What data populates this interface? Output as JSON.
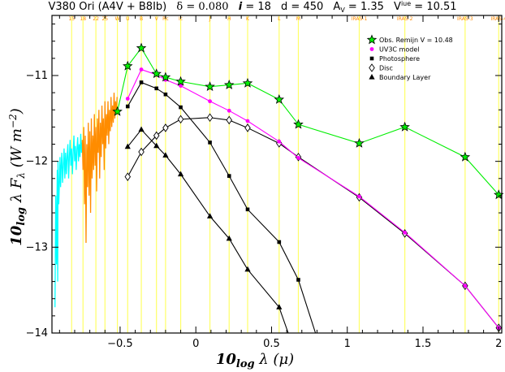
{
  "chart_data": {
    "type": "line",
    "title": "V380 Ori (A4V + B8Ib) δ = 0.080 i = 18 d = 450 A_V = 1.35 V^iue = 10.51",
    "title_parts": {
      "star": "V380 Ori (A4V + B8Ib)",
      "delta": "δ = 0.080",
      "i_symbol": "i",
      "i_value": " = 18",
      "d": "d = 450",
      "av_base": "A",
      "av_sub": "V",
      "av_value": " = 1.35",
      "viue_base": "V",
      "viue_sup": "iue",
      "viue_value": " = 10.51"
    },
    "xlabel": "10log λ (μ)",
    "ylabel": "10log λ Fλ (W m⁻²)",
    "xlabel_parts": {
      "pre": "10",
      "sub": "log",
      "post": " λ (μ)"
    },
    "ylabel_parts": {
      "pre": "10",
      "sub": "log",
      "mid": " λ F",
      "lsub": "λ",
      "post": " (W m",
      "sup": "−2",
      "end": ")"
    },
    "xlim": [
      -0.95,
      2.02
    ],
    "ylim": [
      -14,
      -10.3
    ],
    "x_ticks": [
      -0.5,
      0,
      0.5,
      1,
      1.5,
      2
    ],
    "x_tick_labels": [
      "−0.5",
      "0",
      "0.5",
      "1",
      "1.5",
      "2"
    ],
    "y_ticks": [
      -11,
      -12,
      -13,
      -14
    ],
    "y_tick_labels": [
      "−11",
      "−12",
      "−13",
      "−14"
    ],
    "filter_bands": [
      {
        "label": "15",
        "x": -0.82
      },
      {
        "label": "18",
        "x": -0.745
      },
      {
        "label": "22",
        "x": -0.66
      },
      {
        "label": "25",
        "x": -0.6
      },
      {
        "label": "W",
        "x": -0.518
      },
      {
        "label": "U",
        "x": -0.45
      },
      {
        "label": "B",
        "x": -0.36
      },
      {
        "label": "V",
        "x": -0.26
      },
      {
        "label": "Rc",
        "x": -0.2
      },
      {
        "label": "Ic",
        "x": -0.1
      },
      {
        "label": "J",
        "x": 0.093
      },
      {
        "label": "H",
        "x": 0.22
      },
      {
        "label": "K",
        "x": 0.342
      },
      {
        "label": "L",
        "x": 0.55
      },
      {
        "label": "M",
        "x": 0.677
      },
      {
        "label": "IRAS-1",
        "x": 1.079
      },
      {
        "label": "IRAS-2",
        "x": 1.38
      },
      {
        "label": "IRAS-3",
        "x": 1.778
      },
      {
        "label": "IRAS-4",
        "x": 2.0
      }
    ],
    "legend": [
      {
        "label": "Obs. Remijn V = 10.48",
        "marker": "star",
        "color": "#00ee00"
      },
      {
        "label": "UV3C model",
        "marker": "dot",
        "color": "#ff00ff"
      },
      {
        "label": "Photosphere",
        "marker": "square",
        "color": "#000000"
      },
      {
        "label": "Disc",
        "marker": "diamond",
        "color": "#000000"
      },
      {
        "label": "Boundary Layer",
        "marker": "triangle",
        "color": "#000000"
      }
    ],
    "legend_position": "top-right",
    "series": [
      {
        "name": "Obs. Remijn V = 10.48",
        "color": "#00ee00",
        "marker": "star",
        "x": [
          -0.518,
          -0.45,
          -0.36,
          -0.26,
          -0.2,
          -0.1,
          0.093,
          0.22,
          0.342,
          0.55,
          0.677,
          1.079,
          1.38,
          1.778,
          2.0
        ],
        "y": [
          -11.42,
          -10.89,
          -10.68,
          -10.98,
          -11.02,
          -11.07,
          -11.13,
          -11.11,
          -11.09,
          -11.28,
          -11.57,
          -11.79,
          -11.6,
          -11.95,
          -12.39
        ]
      },
      {
        "name": "UV3C model",
        "color": "#ff00ff",
        "marker": "dot",
        "x": [
          -0.45,
          -0.36,
          -0.26,
          -0.2,
          -0.1,
          0.093,
          0.22,
          0.342,
          0.55,
          0.677,
          1.079,
          1.38,
          1.778,
          2.0
        ],
        "y": [
          -11.27,
          -10.93,
          -10.99,
          -11.05,
          -11.12,
          -11.3,
          -11.41,
          -11.53,
          -11.77,
          -11.96,
          -12.41,
          -12.83,
          -13.45,
          -13.94
        ]
      },
      {
        "name": "Photosphere",
        "color": "#000000",
        "marker": "square",
        "x": [
          -0.45,
          -0.36,
          -0.26,
          -0.2,
          -0.1,
          0.093,
          0.22,
          0.342,
          0.55,
          0.677,
          0.79
        ],
        "y": [
          -11.36,
          -11.08,
          -11.15,
          -11.22,
          -11.37,
          -11.78,
          -12.17,
          -12.56,
          -12.94,
          -13.38,
          -14.0
        ]
      },
      {
        "name": "Disc",
        "color": "#000000",
        "marker": "diamond",
        "x": [
          -0.45,
          -0.36,
          -0.26,
          -0.2,
          -0.1,
          0.093,
          0.22,
          0.342,
          0.55,
          0.677,
          1.079,
          1.38,
          1.778,
          2.0
        ],
        "y": [
          -12.18,
          -11.89,
          -11.7,
          -11.61,
          -11.51,
          -11.49,
          -11.52,
          -11.61,
          -11.79,
          -11.95,
          -12.42,
          -12.84,
          -13.45,
          -13.94
        ]
      },
      {
        "name": "Boundary Layer",
        "color": "#000000",
        "marker": "triangle",
        "x": [
          -0.45,
          -0.36,
          -0.26,
          -0.2,
          -0.1,
          0.093,
          0.22,
          0.342,
          0.55,
          0.61
        ],
        "y": [
          -11.83,
          -11.63,
          -11.82,
          -11.93,
          -12.15,
          -12.64,
          -12.9,
          -13.26,
          -13.7,
          -14.0
        ]
      }
    ],
    "spectra": [
      {
        "color": "#00ffff",
        "x": [
          -0.93,
          -0.925,
          -0.92,
          -0.915,
          -0.912,
          -0.91,
          -0.905,
          -0.9,
          -0.897,
          -0.893,
          -0.89,
          -0.885,
          -0.88,
          -0.875,
          -0.87,
          -0.865,
          -0.86,
          -0.855,
          -0.85,
          -0.845,
          -0.84,
          -0.835,
          -0.83,
          -0.825,
          -0.82,
          -0.815,
          -0.81,
          -0.805,
          -0.8,
          -0.795,
          -0.79,
          -0.785,
          -0.78,
          -0.775,
          -0.77,
          -0.765,
          -0.76,
          -0.755,
          -0.75
        ],
        "y": [
          -13.7,
          -12.4,
          -13.2,
          -12.1,
          -13.4,
          -12.0,
          -12.5,
          -12.2,
          -11.95,
          -12.3,
          -12.1,
          -11.9,
          -12.25,
          -12.05,
          -11.85,
          -12.2,
          -11.9,
          -12.15,
          -11.95,
          -11.8,
          -12.2,
          -11.95,
          -11.75,
          -12.05,
          -11.85,
          -12.15,
          -11.9,
          -11.7,
          -12.0,
          -11.82,
          -12.1,
          -11.86,
          -11.72,
          -12.0,
          -11.8,
          -11.95,
          -11.68,
          -11.9,
          -11.78
        ]
      },
      {
        "color": "#ff8c00",
        "x": [
          -0.75,
          -0.745,
          -0.74,
          -0.735,
          -0.73,
          -0.725,
          -0.72,
          -0.715,
          -0.71,
          -0.705,
          -0.7,
          -0.695,
          -0.69,
          -0.685,
          -0.68,
          -0.675,
          -0.67,
          -0.665,
          -0.66,
          -0.655,
          -0.65,
          -0.645,
          -0.64,
          -0.635,
          -0.63,
          -0.625,
          -0.62,
          -0.615,
          -0.61,
          -0.605,
          -0.6,
          -0.595,
          -0.59,
          -0.585,
          -0.58,
          -0.575,
          -0.57,
          -0.565,
          -0.56,
          -0.555,
          -0.55,
          -0.545,
          -0.54,
          -0.535,
          -0.53,
          -0.525,
          -0.52
        ],
        "y": [
          -11.75,
          -12.1,
          -11.6,
          -12.5,
          -11.7,
          -12.95,
          -11.8,
          -12.3,
          -11.55,
          -12.4,
          -11.65,
          -12.6,
          -11.5,
          -12.2,
          -11.7,
          -12.1,
          -11.45,
          -12.05,
          -11.6,
          -12.35,
          -11.5,
          -11.9,
          -11.4,
          -12.2,
          -11.55,
          -11.95,
          -11.35,
          -11.8,
          -11.5,
          -12.1,
          -11.3,
          -11.85,
          -11.45,
          -11.7,
          -11.3,
          -11.8,
          -11.4,
          -11.65,
          -11.25,
          -11.6,
          -11.35,
          -11.55,
          -11.2,
          -11.5,
          -11.3,
          -11.45,
          -11.25
        ]
      }
    ]
  }
}
